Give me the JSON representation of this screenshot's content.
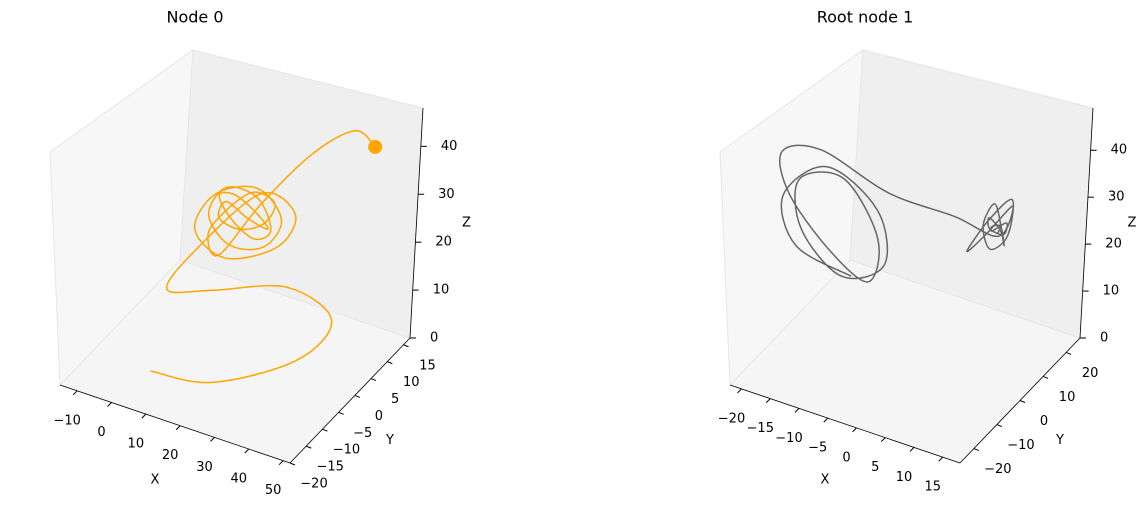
{
  "chart_data": [
    {
      "type": "line3d",
      "title": "Node 0",
      "xlabel": "X",
      "ylabel": "Y",
      "zlabel": "Z",
      "color": "#ffa500",
      "end_marker": true,
      "grid": false,
      "xlim": [
        -15,
        52
      ],
      "ylim": [
        -20,
        17
      ],
      "zlim": [
        0,
        48
      ],
      "xticks": [
        {
          "value": -10,
          "label": "−10"
        },
        0,
        10,
        20,
        30,
        40,
        50
      ],
      "yticks": [
        {
          "value": -20,
          "label": "−20"
        },
        {
          "value": -15,
          "label": "−15"
        },
        {
          "value": -10,
          "label": "−10"
        },
        {
          "value": -5,
          "label": "−5"
        },
        0,
        5,
        10,
        15
      ],
      "zticks": [
        0,
        10,
        20,
        30,
        40
      ],
      "x": [
        2,
        20,
        40,
        45,
        30,
        10,
        0,
        8,
        22,
        30,
        25,
        12,
        5,
        10,
        20,
        26,
        22,
        14,
        9,
        13,
        20,
        24,
        20,
        14,
        11,
        15,
        21,
        23,
        18,
        13,
        12,
        17,
        22,
        24,
        19,
        14,
        10,
        12,
        20,
        30,
        38,
        42
      ],
      "y": [
        -10,
        -10,
        -5,
        0,
        2,
        0,
        -3,
        -2,
        2,
        4,
        4,
        2,
        0,
        1,
        3,
        4,
        3,
        1,
        0,
        1,
        3,
        3,
        2,
        1,
        1,
        2,
        3,
        3,
        2,
        1,
        0,
        1,
        3,
        4,
        3,
        1,
        -1,
        0,
        4,
        8,
        12,
        14
      ],
      "z": [
        0,
        2,
        8,
        14,
        16,
        12,
        12,
        22,
        34,
        30,
        22,
        18,
        24,
        32,
        34,
        28,
        22,
        22,
        28,
        34,
        32,
        26,
        24,
        28,
        32,
        32,
        28,
        26,
        28,
        31,
        28,
        26,
        27,
        31,
        33,
        30,
        25,
        20,
        30,
        40,
        44,
        40
      ]
    },
    {
      "type": "line3d",
      "title": "Root node 1",
      "xlabel": "X",
      "ylabel": "Y",
      "zlabel": "Z",
      "color": "#666666",
      "end_marker": false,
      "grid": false,
      "xlim": [
        -22,
        18
      ],
      "ylim": [
        -26,
        26
      ],
      "zlim": [
        0,
        49
      ],
      "xticks": [
        {
          "value": -20,
          "label": "−20"
        },
        {
          "value": -15,
          "label": "−15"
        },
        {
          "value": -10,
          "label": "−10"
        },
        {
          "value": -5,
          "label": "−5"
        },
        0,
        5,
        10,
        15
      ],
      "yticks": [
        {
          "value": -20,
          "label": "−20"
        },
        {
          "value": -10,
          "label": "−10"
        },
        0,
        10,
        20
      ],
      "zticks": [
        0,
        10,
        20,
        30,
        40
      ],
      "x": [
        -8,
        -14,
        -16,
        -12,
        -6,
        -4,
        -8,
        -13,
        -15,
        -11,
        -6,
        -5,
        -9,
        -14,
        -17,
        -14,
        -6,
        2,
        8,
        12,
        10,
        6,
        7,
        11,
        13,
        10,
        7,
        8,
        11,
        12,
        10,
        8,
        9,
        11,
        11,
        9,
        9,
        10,
        10
      ],
      "y": [
        -8,
        -16,
        -16,
        -8,
        -2,
        -4,
        -12,
        -16,
        -12,
        -4,
        -2,
        -8,
        -14,
        -18,
        -14,
        -6,
        2,
        10,
        14,
        10,
        4,
        6,
        12,
        12,
        6,
        6,
        10,
        12,
        8,
        7,
        10,
        10,
        8,
        9,
        10,
        9,
        9,
        10,
        9
      ],
      "z": [
        20,
        28,
        38,
        42,
        32,
        22,
        22,
        32,
        40,
        38,
        26,
        20,
        28,
        40,
        46,
        44,
        34,
        28,
        24,
        34,
        30,
        24,
        28,
        34,
        30,
        26,
        28,
        32,
        30,
        27,
        28,
        30,
        29,
        28,
        30,
        28,
        29,
        29,
        28
      ]
    }
  ]
}
